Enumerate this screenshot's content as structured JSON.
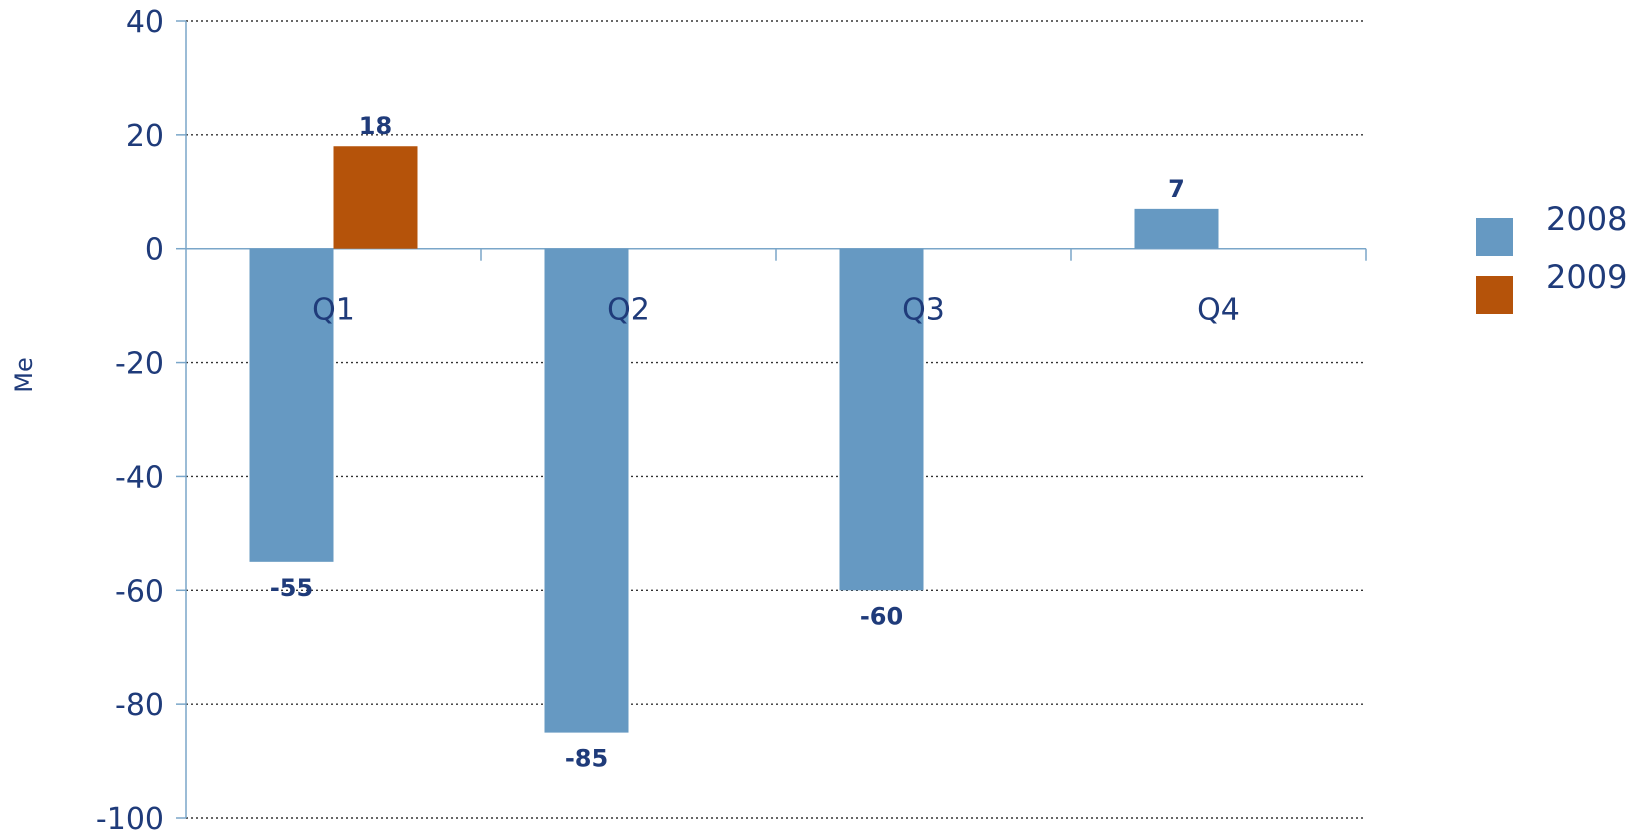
{
  "chart_data": {
    "type": "bar",
    "categories": [
      "Q1",
      "Q2",
      "Q3",
      "Q4"
    ],
    "series": [
      {
        "name": "2008",
        "values": [
          -55,
          -85,
          -60,
          7
        ],
        "labels": [
          "-55",
          "-85",
          "-60",
          "7"
        ],
        "color": "#6699c2"
      },
      {
        "name": "2009",
        "values": [
          18,
          null,
          null,
          null
        ],
        "labels": [
          "18",
          "",
          "",
          ""
        ],
        "color": "#b5530a"
      }
    ],
    "title": "",
    "xlabel": "",
    "ylabel": "Me",
    "ylim": [
      -100,
      40
    ],
    "yticks": [
      40,
      20,
      0,
      -20,
      -40,
      -60,
      -80,
      -100
    ],
    "ytick_labels": [
      "40",
      "20",
      "0",
      "-20",
      "-40",
      "-60",
      "-80",
      "-100"
    ],
    "grid": "horizontal dotted",
    "legend": "right"
  },
  "colors": {
    "text": "#1f3b7a",
    "axis": "#7aa6c9",
    "grid": "#333333"
  }
}
